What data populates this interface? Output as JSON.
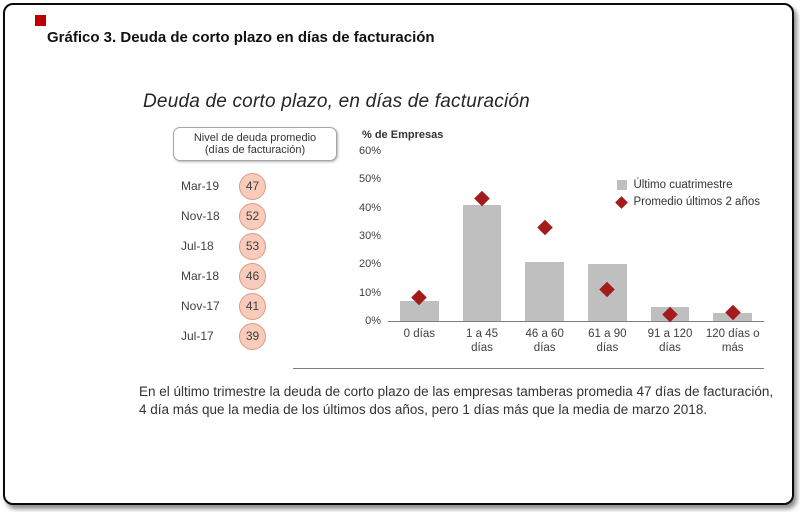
{
  "header": {
    "title": "Gráfico 3. Deuda de corto plazo en días de facturación"
  },
  "figure": {
    "title": "Deuda de corto plazo, en días de facturación",
    "left_panel": {
      "label_line1": "Nivel de deuda promedio",
      "label_line2": "(días de facturación)",
      "rows": [
        {
          "date": "Mar-19",
          "value": "47"
        },
        {
          "date": "Nov-18",
          "value": "52"
        },
        {
          "date": "Jul-18",
          "value": "53"
        },
        {
          "date": "Mar-18",
          "value": "46"
        },
        {
          "date": "Nov-17",
          "value": "41"
        },
        {
          "date": "Jul-17",
          "value": "39"
        }
      ]
    },
    "footnote": "En el último trimestre la deuda de corto plazo de las empresas tamberas promedia 47 días de facturación, 4 día más que la media de los últimos dos años, pero 1 días más que la media de marzo 2018."
  },
  "chart_data": {
    "type": "bar",
    "title": "Deuda de corto plazo, en días de facturación",
    "xlabel": "",
    "ylabel": "% de Empresas",
    "ylim": [
      0,
      60
    ],
    "yticks": [
      0,
      10,
      20,
      30,
      40,
      50,
      60
    ],
    "ytick_suffix": "%",
    "grid": false,
    "legend_position": "top-right",
    "categories": [
      "0 días",
      "1 a 45 días",
      "46 a 60 días",
      "61 a 90 días",
      "91 a 120 días",
      "120 días o más"
    ],
    "series": [
      {
        "name": "Último cuatrimestre",
        "type": "bar",
        "color": "#bfbfbf",
        "values": [
          7,
          41,
          21,
          20,
          5,
          3
        ]
      },
      {
        "name": "Promedio últimos 2 años",
        "type": "diamond",
        "color": "#a21c1c",
        "values": [
          8,
          43,
          33,
          11,
          2,
          3
        ]
      }
    ]
  }
}
